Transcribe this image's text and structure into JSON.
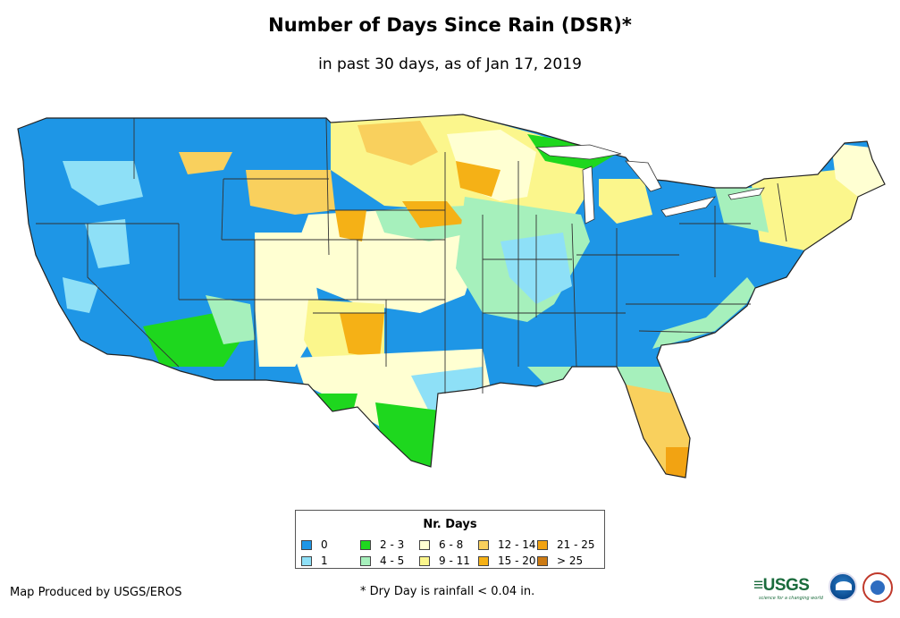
{
  "title": "Number of Days Since Rain (DSR)*",
  "subtitle": "in past 30 days, as of Jan 17, 2019",
  "legend": {
    "title": "Nr. Days",
    "items": [
      {
        "label": "0",
        "color": "#1e96e6"
      },
      {
        "label": "1",
        "color": "#8ee0f7"
      },
      {
        "label": "2 - 3",
        "color": "#1ed71e"
      },
      {
        "label": "4 - 5",
        "color": "#a6f0bc"
      },
      {
        "label": "6 - 8",
        "color": "#ffffd2"
      },
      {
        "label": "9 - 11",
        "color": "#fbf68c"
      },
      {
        "label": "12 - 14",
        "color": "#f9d05d"
      },
      {
        "label": "15 - 20",
        "color": "#f5b116"
      },
      {
        "label": "21 - 25",
        "color": "#f2a312"
      },
      {
        "label": "> 25",
        "color": "#cc7a13"
      }
    ]
  },
  "credit": "Map Produced by USGS/EROS",
  "footnote": "* Dry Day is rainfall < 0.04 in.",
  "logos": {
    "usgs_text": "USGS",
    "usgs_tagline": "science for a changing world"
  }
}
